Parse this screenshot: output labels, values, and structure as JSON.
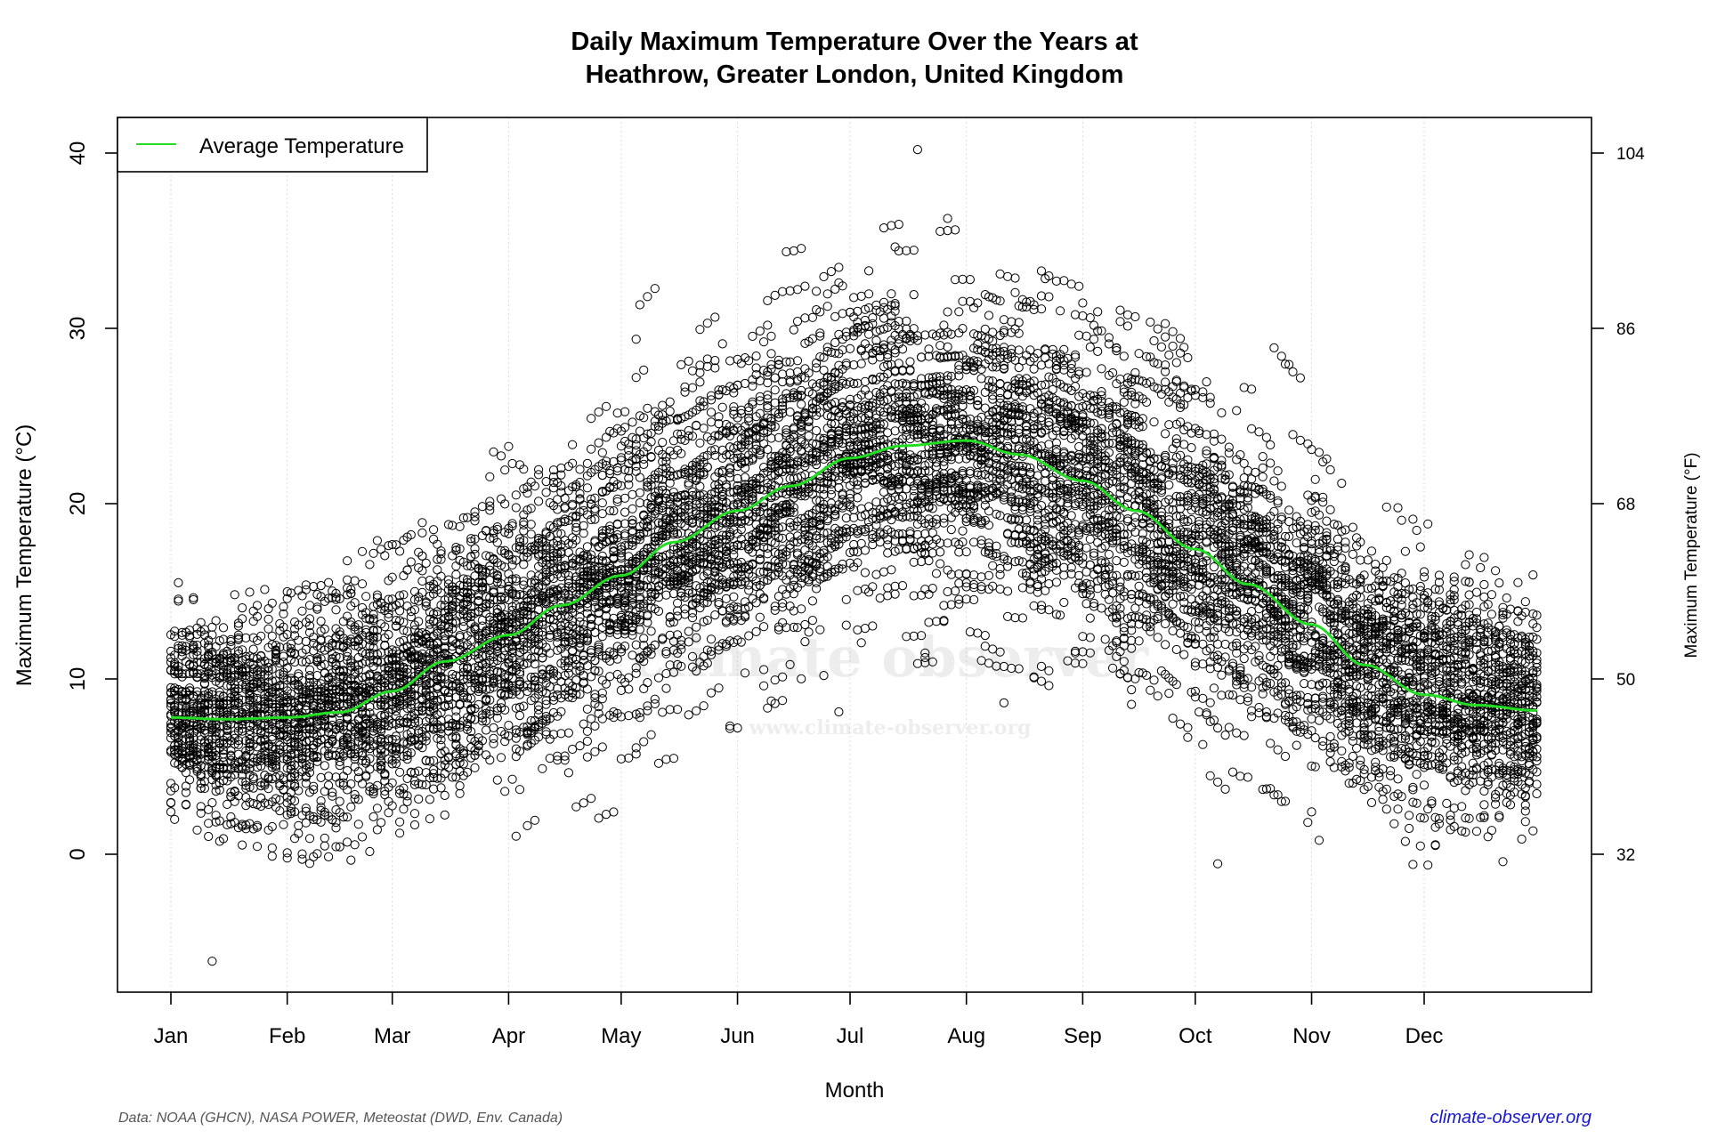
{
  "chart_data": {
    "type": "scatter",
    "title_line1": "Daily Maximum Temperature Over the Years at",
    "title_line2": "Heathrow, Greater London, United Kingdom",
    "xlabel": "Month",
    "ylabel": "Maximum Temperature  (°C)",
    "ylabel_right": "Maximum Temperature (°F)",
    "x_ticks": [
      "Jan",
      "Feb",
      "Mar",
      "Apr",
      "May",
      "Jun",
      "Jul",
      "Aug",
      "Sep",
      "Oct",
      "Nov",
      "Dec"
    ],
    "y_ticks": [
      0,
      10,
      20,
      30,
      40
    ],
    "y_ticks_right": [
      32,
      50,
      68,
      86,
      104
    ],
    "ylim": [
      -8,
      41.5
    ],
    "grid": "vertical dotted at month starts",
    "legend": {
      "position": "top-left",
      "entries": [
        {
          "name": "Average Temperature",
          "color": "#22dd22"
        }
      ]
    },
    "average_curve": {
      "name": "Average Temperature",
      "color": "#22dd22",
      "points": [
        {
          "date": "Jan 1",
          "temp": 7.8
        },
        {
          "date": "Jan 15",
          "temp": 7.7
        },
        {
          "date": "Feb 1",
          "temp": 7.8
        },
        {
          "date": "Feb 15",
          "temp": 8.1
        },
        {
          "date": "Mar 1",
          "temp": 9.3
        },
        {
          "date": "Mar 15",
          "temp": 11.0
        },
        {
          "date": "Apr 1",
          "temp": 12.5
        },
        {
          "date": "Apr 15",
          "temp": 14.2
        },
        {
          "date": "May 1",
          "temp": 15.9
        },
        {
          "date": "May 15",
          "temp": 17.8
        },
        {
          "date": "Jun 1",
          "temp": 19.6
        },
        {
          "date": "Jun 15",
          "temp": 21.0
        },
        {
          "date": "Jul 1",
          "temp": 22.6
        },
        {
          "date": "Jul 15",
          "temp": 23.3
        },
        {
          "date": "Aug 1",
          "temp": 23.6
        },
        {
          "date": "Aug 15",
          "temp": 22.8
        },
        {
          "date": "Sep 1",
          "temp": 21.3
        },
        {
          "date": "Sep 15",
          "temp": 19.6
        },
        {
          "date": "Oct 1",
          "temp": 17.4
        },
        {
          "date": "Oct 15",
          "temp": 15.4
        },
        {
          "date": "Nov 1",
          "temp": 13.1
        },
        {
          "date": "Nov 15",
          "temp": 10.8
        },
        {
          "date": "Dec 1",
          "temp": 9.1
        },
        {
          "date": "Dec 15",
          "temp": 8.5
        },
        {
          "date": "Dec 31",
          "temp": 8.2
        }
      ]
    },
    "daily_observations": {
      "marker": "open circle",
      "color": "#000000",
      "highest": {
        "date": "Jul 19",
        "temp": 40.2
      },
      "lowest": {
        "date": "Jan 12",
        "temp": -6.1
      }
    }
  },
  "watermark": {
    "name": "climate observer",
    "url": "www.climate-observer.org"
  },
  "footer": {
    "source": "Data: NOAA (GHCN), NASA POWER, Meteostat (DWD, Env. Canada)",
    "site": "climate-observer.org"
  }
}
